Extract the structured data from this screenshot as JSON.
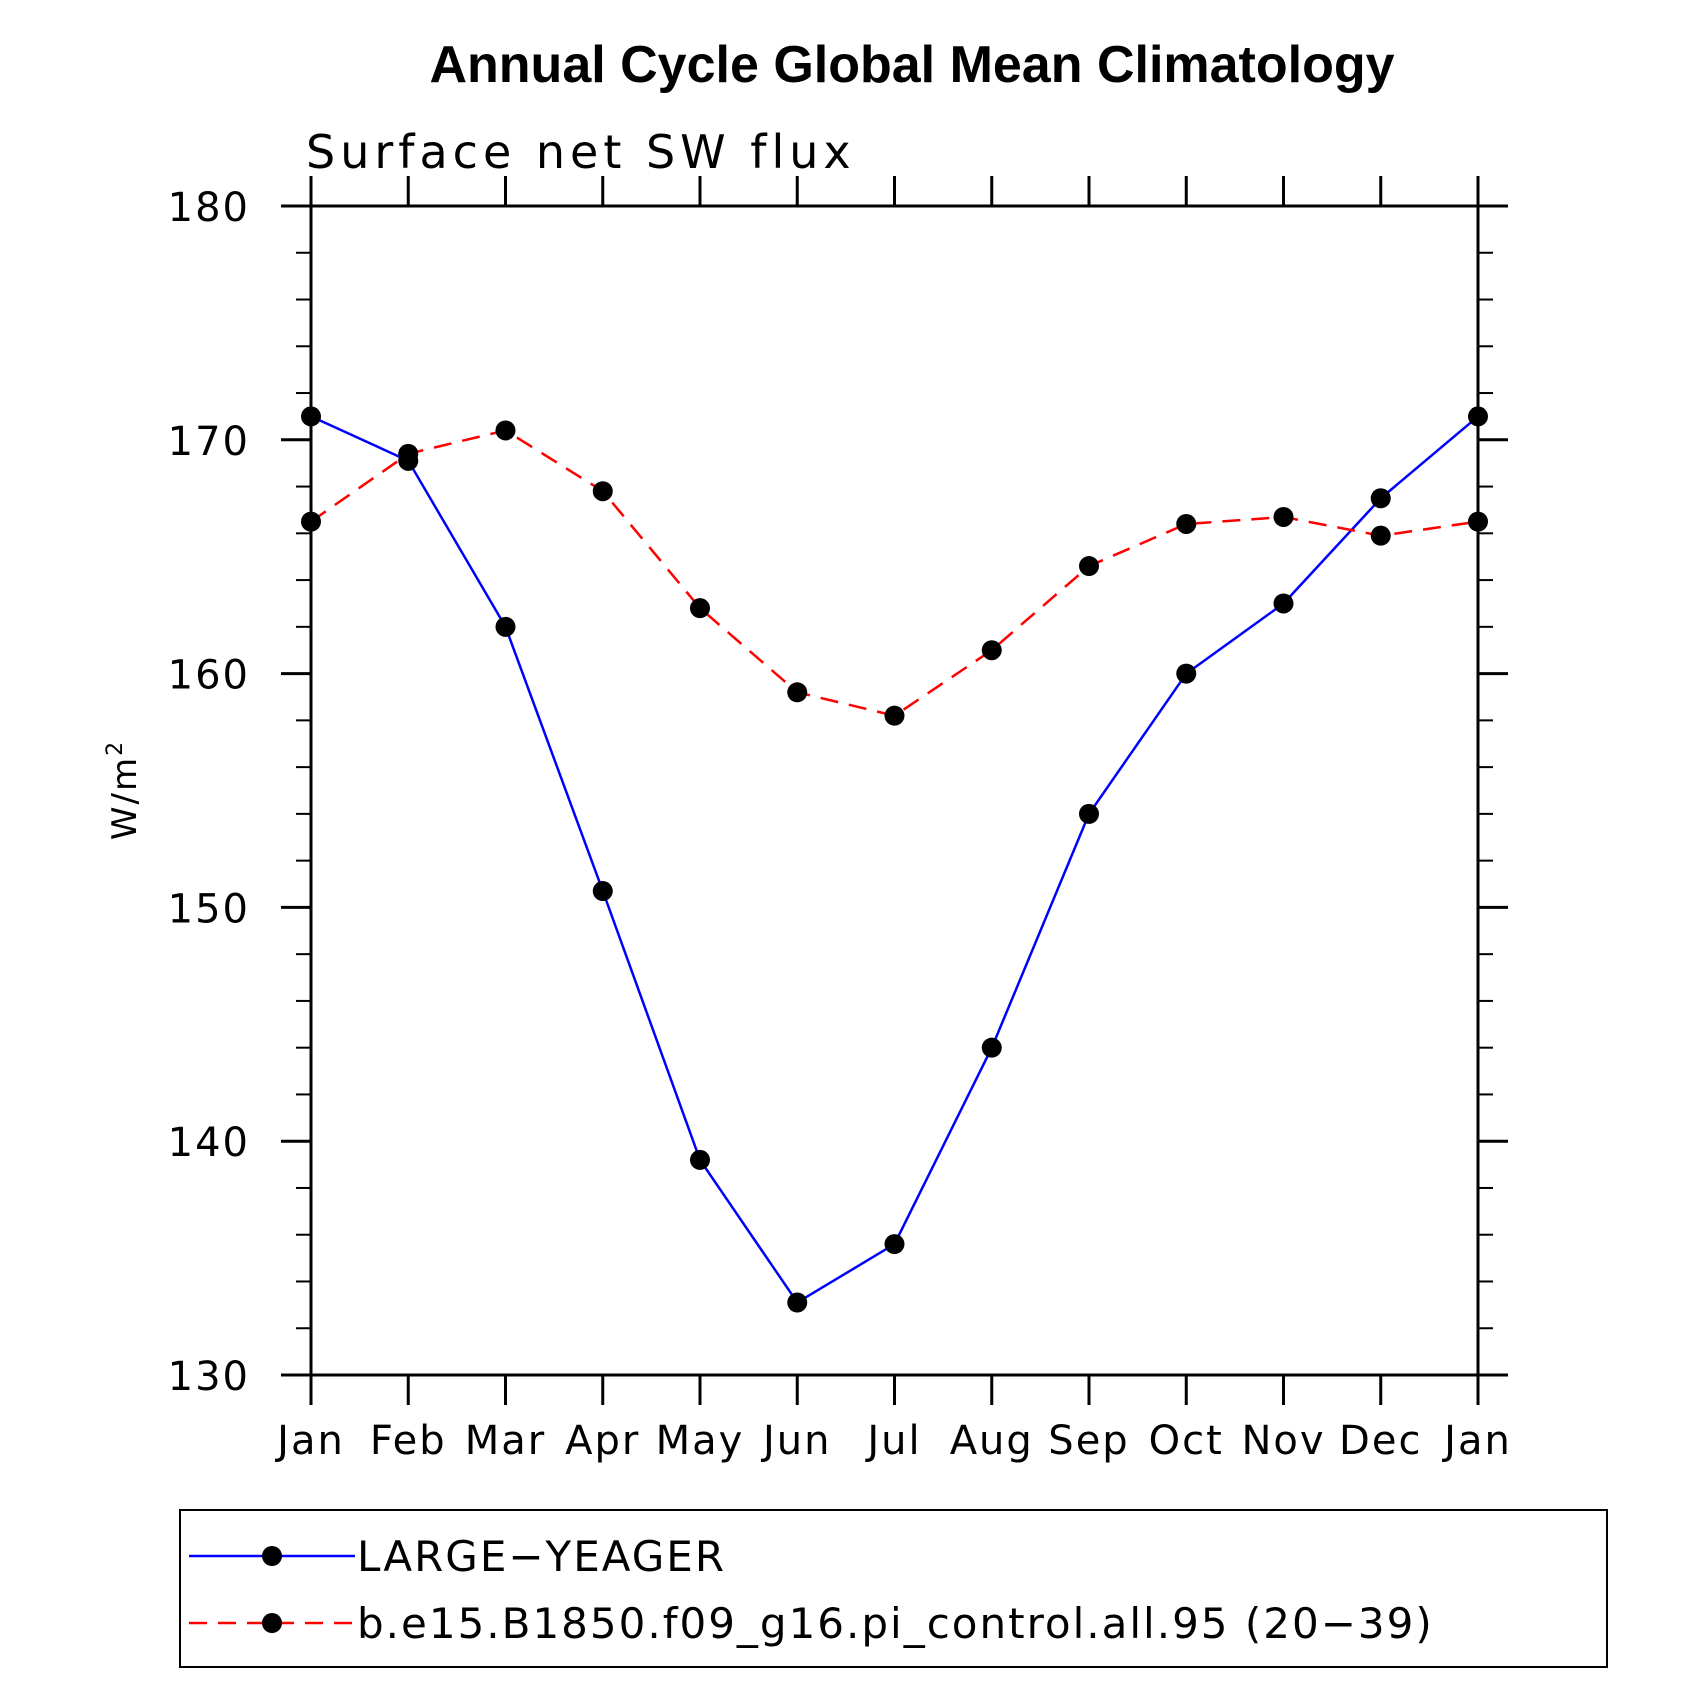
{
  "chart_data": {
    "type": "line",
    "title": "Annual Cycle Global Mean Climatology",
    "subtitle": "Surface net SW flux",
    "ylabel": "W/m",
    "ylabel_superscript": "2",
    "categories": [
      "Jan",
      "Feb",
      "Mar",
      "Apr",
      "May",
      "Jun",
      "Jul",
      "Aug",
      "Sep",
      "Oct",
      "Nov",
      "Dec",
      "Jan"
    ],
    "ylim": [
      130,
      180
    ],
    "yticks": [
      130,
      140,
      150,
      160,
      170,
      180
    ],
    "ylabel_ticks": [
      "130",
      "140",
      "150",
      "160",
      "170",
      "180"
    ],
    "grid": false,
    "legend_position": "bottom",
    "series": [
      {
        "name": "LARGE−YEAGER",
        "color": "#0000ff",
        "dash": "solid",
        "marker": "circle",
        "values": [
          171.0,
          169.1,
          162.0,
          150.7,
          139.2,
          133.1,
          135.6,
          144.0,
          154.0,
          160.0,
          163.0,
          167.5,
          171.0
        ]
      },
      {
        "name": "b.e15.B1850.f09_g16.pi_control.all.95 (20−39)",
        "color": "#ff0000",
        "dash": "dashed",
        "marker": "circle",
        "values": [
          166.5,
          169.4,
          170.4,
          167.8,
          162.8,
          159.2,
          158.2,
          161.0,
          164.6,
          166.4,
          166.7,
          165.9,
          166.5
        ]
      }
    ]
  }
}
